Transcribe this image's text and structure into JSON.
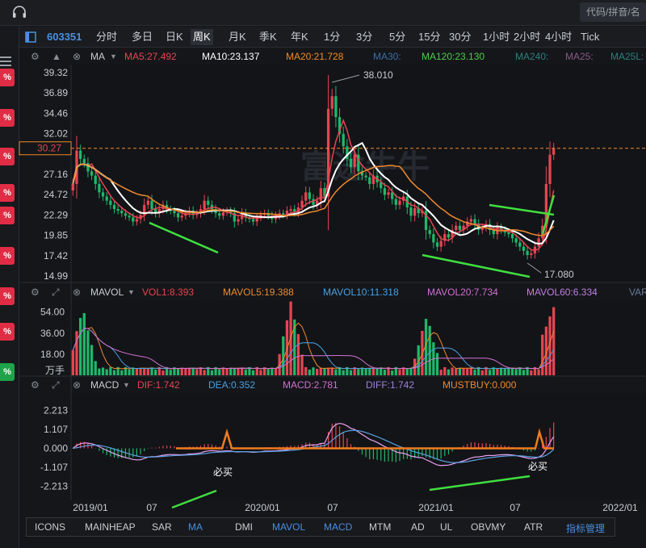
{
  "topbar": {
    "search_placeholder": "代码/拼音/名"
  },
  "left_badges": [
    {
      "label": "%",
      "color": "#e02d45"
    },
    {
      "label": "%",
      "color": "#e02d45"
    },
    {
      "label": "%",
      "color": "#e02d45"
    },
    {
      "label": "%",
      "color": "#e02d45"
    },
    {
      "label": "%",
      "color": "#e02d45"
    },
    {
      "label": "%",
      "color": "#e02d45"
    },
    {
      "label": "%",
      "color": "#e02d45"
    },
    {
      "label": "%",
      "color": "#e02d45"
    },
    {
      "label": "%",
      "color": "#1fa34a"
    }
  ],
  "stock_code": "603351",
  "periods": [
    "分时",
    "多日",
    "日K",
    "周K",
    "月K",
    "季K",
    "年K",
    "1分",
    "3分",
    "5分",
    "15分",
    "30分",
    "1小时",
    "2小时",
    "4小时",
    "Tick"
  ],
  "active_period": "周K",
  "watermark": "富途牛牛",
  "price_legend": {
    "indicator": "MA",
    "items": [
      {
        "label": "MA5:27.492",
        "color": "#e64552"
      },
      {
        "label": "MA10:23.137",
        "color": "#ffffff"
      },
      {
        "label": "MA20:21.728",
        "color": "#f08a2c"
      },
      {
        "label": "MA30:",
        "color": "#3a6fa8"
      },
      {
        "label": "MA120:23.130",
        "color": "#4ccc4c"
      },
      {
        "label": "MA240:",
        "color": "#2f7f7f"
      },
      {
        "label": "MA25:",
        "color": "#8a5a8a"
      },
      {
        "label": "MA25L:",
        "color": "#2f7f7f"
      }
    ]
  },
  "vol_legend": {
    "indicator": "MAVOL",
    "items": [
      {
        "label": "VOL1:8.393",
        "color": "#e64552"
      },
      {
        "label": "MAVOL5:19.388",
        "color": "#f08a2c"
      },
      {
        "label": "MAVOL10:11.318",
        "color": "#4aa0e0"
      },
      {
        "label": "MAVOL20:7.734",
        "color": "#d070d0"
      },
      {
        "label": "MAVOL60:6.334",
        "color": "#c080e0"
      },
      {
        "label": "VAR",
        "color": "#6a7a9a"
      }
    ]
  },
  "macd_legend": {
    "indicator": "MACD",
    "items": [
      {
        "label": "DIF:1.742",
        "color": "#e64552"
      },
      {
        "label": "DEA:0.352",
        "color": "#4aa0e0"
      },
      {
        "label": "MACD:2.781",
        "color": "#d070d0"
      },
      {
        "label": "DIFF:1.742",
        "color": "#a080e0"
      },
      {
        "label": "MUSTBUY:0.000",
        "color": "#f08a2c"
      }
    ]
  },
  "bottom_tabs": [
    {
      "label": "ICONS",
      "color": "#c9ccd1"
    },
    {
      "label": "MAINHEAP",
      "color": "#c9ccd1"
    },
    {
      "label": "SAR",
      "color": "#c9ccd1"
    },
    {
      "label": "MA",
      "color": "#4a8fe0"
    },
    {
      "label": "DMI",
      "color": "#c9ccd1"
    },
    {
      "label": "MAVOL",
      "color": "#4a8fe0"
    },
    {
      "label": "MACD",
      "color": "#4a8fe0"
    },
    {
      "label": "MTM",
      "color": "#c9ccd1"
    },
    {
      "label": "AD",
      "color": "#c9ccd1"
    },
    {
      "label": "UL",
      "color": "#c9ccd1"
    },
    {
      "label": "OBVMY",
      "color": "#c9ccd1"
    },
    {
      "label": "ATR",
      "color": "#c9ccd1"
    },
    {
      "label": "指标管理",
      "color": "#4a8fe0"
    }
  ],
  "chart_data": [
    {
      "type": "candlestick",
      "title": "",
      "y_ticks": [
        39.32,
        36.89,
        34.46,
        32.02,
        27.16,
        24.72,
        22.29,
        19.85,
        17.42,
        14.99
      ],
      "ylim": [
        14.99,
        39.32
      ],
      "current_price": 30.27,
      "annotations": [
        {
          "label": "38.010",
          "kind": "high"
        },
        {
          "label": "17.080",
          "kind": "low"
        }
      ],
      "x_ticks": [
        "2019/01",
        "07",
        "2020/01",
        "07",
        "2021/01",
        "07",
        "2022/01"
      ],
      "close_path": [
        26,
        30,
        29,
        28.5,
        27.5,
        27,
        26,
        25,
        24.5,
        24,
        23.5,
        23,
        22.8,
        22.5,
        22.2,
        22,
        21.5,
        21.8,
        22.3,
        23.5,
        24,
        23,
        22.5,
        23,
        23.5,
        23,
        22.8,
        22.5,
        22,
        22.2,
        22.5,
        22.8,
        22.3,
        22.5,
        23,
        24,
        23.5,
        23,
        22.5,
        22.2,
        22.6,
        22.8,
        22.5,
        21.5,
        21.8,
        22.5,
        22,
        21.8,
        21.5,
        22,
        22.3,
        22.5,
        22.2,
        21.8,
        22.2,
        22.5,
        22.3,
        22.8,
        23,
        22.6,
        23.2,
        24,
        25,
        24.2,
        23.5,
        24,
        25.5,
        24.5,
        35,
        36.5,
        34,
        32,
        30.5,
        29,
        28,
        29.5,
        27.5,
        27,
        26.8,
        26,
        27,
        26.2,
        25.5,
        24.7,
        25,
        24.2,
        23.5,
        24,
        24.5,
        23.2,
        22.2,
        23.1,
        22.5,
        22.8,
        20.5,
        20,
        19,
        18.5,
        19.2,
        20,
        19.6,
        20.5,
        21,
        20.5,
        21,
        21.5,
        21.8,
        21.2,
        20.5,
        20.8,
        21.2,
        20.5,
        20,
        20.8,
        20.5,
        20.2,
        20,
        19.5,
        19,
        18.5,
        18,
        17.5,
        17.7,
        18.5,
        19.5,
        21,
        26,
        29.5,
        30.3
      ],
      "ma_lines": [
        {
          "name": "MA5",
          "color": "#e64552"
        },
        {
          "name": "MA10",
          "color": "#ffffff"
        },
        {
          "name": "MA20",
          "color": "#f08a2c"
        }
      ],
      "drawn_lines_color": "#3fe03f"
    },
    {
      "type": "bar",
      "title": "",
      "unit_label": "万手",
      "y_ticks": [
        54.0,
        36.0,
        18.0
      ],
      "ylim": [
        0,
        60
      ],
      "spikes": [
        {
          "position": 0.02,
          "value": 52
        },
        {
          "position": 0.45,
          "value": 57
        },
        {
          "position": 0.73,
          "value": 45
        }
      ],
      "max_value": 60
    },
    {
      "type": "bar",
      "title": "",
      "y_ticks": [
        2.213,
        1.107,
        0.0,
        -1.107,
        -2.213
      ],
      "ylim": [
        -2.8,
        2.8
      ],
      "buy_label": "必买",
      "dif_color": "#e8a0f0",
      "dea_color": "#5aa0e0",
      "mustbuy_color": "#f27c1c"
    }
  ]
}
